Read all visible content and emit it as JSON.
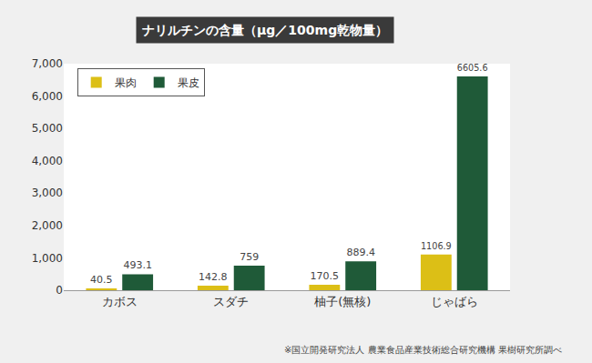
{
  "chart_data": {
    "type": "bar",
    "title": "ナリルチンの含量（μg／100mg乾物量）",
    "note": "※国立開発研究法人 農業食品産業技術総合研究機構 果樹研究所調べ",
    "categories": [
      "カボス",
      "スダチ",
      "柚子(無核)",
      "じゃばら"
    ],
    "series": [
      {
        "name": "果肉",
        "color": "#dcbf16",
        "values": [
          40.5,
          142.8,
          170.5,
          1106.9
        ]
      },
      {
        "name": "果皮",
        "color": "#1f5a38",
        "values": [
          493.1,
          759,
          889.4,
          6605.6
        ]
      }
    ],
    "ylim": [
      0,
      7000
    ],
    "yticks": [
      0,
      {
        "value": 1000,
        "label": "1,000"
      },
      {
        "value": 2000,
        "label": "2,000"
      },
      {
        "value": 3000,
        "label": "3,000"
      },
      {
        "value": 4000,
        "label": "4,000"
      },
      {
        "value": 5000,
        "label": "5,000"
      },
      {
        "value": 6000,
        "label": "6,000"
      },
      {
        "value": 7000,
        "label": "7,000"
      }
    ],
    "grid": false,
    "legend": "top left",
    "data_labels": true
  }
}
